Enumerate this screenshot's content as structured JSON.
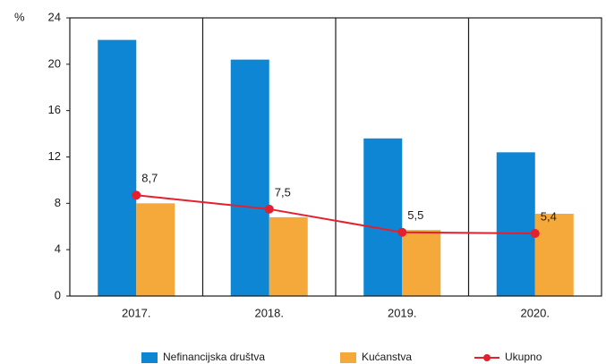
{
  "chart_data": {
    "type": "bar",
    "y_label": "%",
    "categories": [
      "2017.",
      "2018.",
      "2019.",
      "2020."
    ],
    "series": [
      {
        "name": "Nefinancijska društva",
        "type": "bar",
        "color": "#0f86d4",
        "values": [
          22.1,
          20.4,
          13.6,
          12.4
        ]
      },
      {
        "name": "Kućanstva",
        "type": "bar",
        "color": "#f6a93b",
        "values": [
          8.0,
          6.8,
          5.7,
          7.1
        ]
      },
      {
        "name": "Ukupno",
        "type": "line",
        "color": "#e5202e",
        "values": [
          8.7,
          7.5,
          5.5,
          5.4
        ],
        "value_labels": [
          "8,7",
          "7,5",
          "5,5",
          "5,4"
        ]
      }
    ],
    "ylim": [
      0,
      24
    ],
    "yticks": [
      0,
      4,
      8,
      12,
      16,
      20,
      24
    ],
    "legend": "bottom"
  }
}
